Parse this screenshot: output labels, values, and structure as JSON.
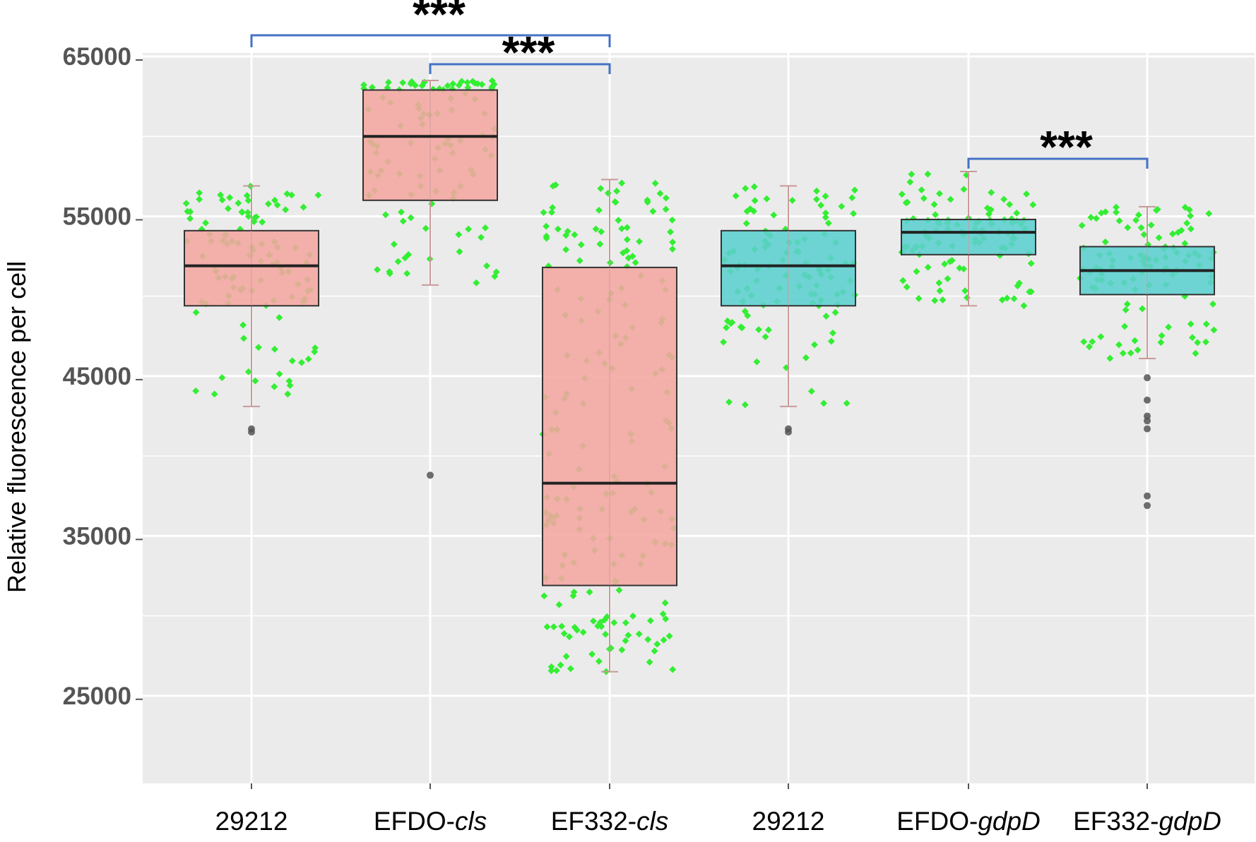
{
  "chart_data": {
    "type": "box",
    "ylabel": "Relative fluorescence per cell",
    "xlabel": "",
    "ylim": [
      25000,
      66000
    ],
    "yticks": [
      "65000",
      "55000",
      "45000",
      "35000",
      "25000"
    ],
    "grid": true,
    "categories": [
      {
        "base": "29212",
        "italic": ""
      },
      {
        "base": "EFDO-",
        "italic": "cls"
      },
      {
        "base": "EF332-",
        "italic": "cls"
      },
      {
        "base": "29212",
        "italic": ""
      },
      {
        "base": "EFDO-",
        "italic": "gdpD"
      },
      {
        "base": "EF332-",
        "italic": "gdpD"
      }
    ],
    "boxes": [
      {
        "q1": 49400,
        "median": 51900,
        "q3": 54100,
        "whisker_low": 43100,
        "whisker_high": 56900,
        "outliers": [
          41500,
          41700
        ],
        "fill": "#f4a6a0"
      },
      {
        "q1": 56000,
        "median": 60000,
        "q3": 62900,
        "whisker_low": 50700,
        "whisker_high": 63500,
        "outliers": [
          38800
        ],
        "fill": "#f4a6a0"
      },
      {
        "q1": 31900,
        "median": 38300,
        "q3": 51800,
        "whisker_low": 26500,
        "whisker_high": 57300,
        "outliers": [],
        "fill": "#f4a6a0"
      },
      {
        "q1": 49400,
        "median": 51900,
        "q3": 54100,
        "whisker_low": 43100,
        "whisker_high": 56900,
        "outliers": [
          41500,
          41700
        ],
        "fill": "#5ccfcf"
      },
      {
        "q1": 52600,
        "median": 54000,
        "q3": 54800,
        "whisker_low": 49400,
        "whisker_high": 57800,
        "outliers": [],
        "fill": "#5ccfcf"
      },
      {
        "q1": 50100,
        "median": 51600,
        "q3": 53100,
        "whisker_low": 46100,
        "whisker_high": 55600,
        "outliers": [
          44900,
          43500,
          42500,
          42200,
          41700,
          37500,
          36900
        ],
        "fill": "#5ccfcf"
      }
    ],
    "significance": [
      {
        "from": 0,
        "to": 2,
        "label": "***"
      },
      {
        "from": 1,
        "to": 2,
        "label": "***"
      },
      {
        "from": 4,
        "to": 5,
        "label": "***"
      }
    ],
    "colors": {
      "panel": "#ebebeb",
      "grid": "#ffffff",
      "whisker": "#c99999",
      "jitter": "#33ee33",
      "bracket": "#4472c4",
      "outlier": "#555555"
    }
  }
}
